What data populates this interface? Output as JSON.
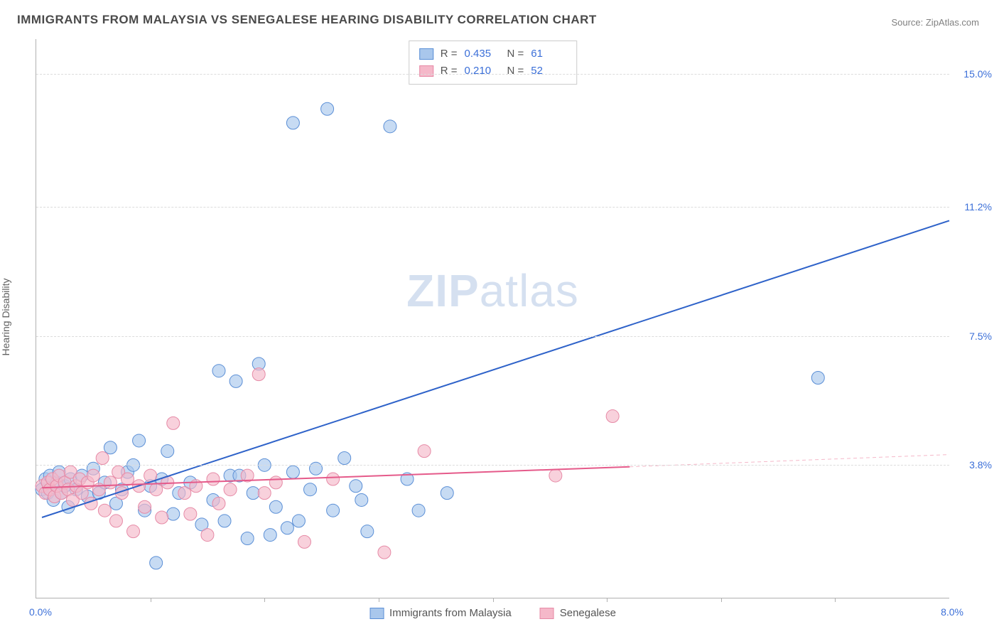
{
  "title": "IMMIGRANTS FROM MALAYSIA VS SENEGALESE HEARING DISABILITY CORRELATION CHART",
  "source_prefix": "Source: ",
  "source_name": "ZipAtlas.com",
  "y_axis_label": "Hearing Disability",
  "watermark_bold": "ZIP",
  "watermark_light": "atlas",
  "chart": {
    "type": "scatter",
    "background_color": "#ffffff",
    "grid_color": "#dcdcdc",
    "axis_color": "#b0b0b0",
    "xlim": [
      0,
      8
    ],
    "ylim": [
      0,
      16
    ],
    "x_origin_label": "0.0%",
    "x_max_label": "8.0%",
    "x_tick_positions": [
      1,
      2,
      3,
      4,
      5,
      6,
      7
    ],
    "y_ticks": [
      {
        "value": 3.8,
        "label": "3.8%"
      },
      {
        "value": 7.5,
        "label": "7.5%"
      },
      {
        "value": 11.2,
        "label": "11.2%"
      },
      {
        "value": 15.0,
        "label": "15.0%"
      }
    ],
    "tick_label_color": "#3b6fd8",
    "series": [
      {
        "id": "malaysia",
        "label": "Immigrants from Malaysia",
        "color_fill": "#a9c7ec",
        "color_stroke": "#5b8fd6",
        "marker_radius": 9,
        "marker_opacity": 0.65,
        "R": "0.435",
        "N": "61",
        "trend": {
          "x1": 0.05,
          "y1": 2.3,
          "x2": 8.0,
          "y2": 10.8,
          "color": "#2e62c9",
          "width": 2
        },
        "points": [
          [
            0.05,
            3.1
          ],
          [
            0.08,
            3.4
          ],
          [
            0.1,
            3.0
          ],
          [
            0.12,
            3.5
          ],
          [
            0.15,
            2.8
          ],
          [
            0.18,
            3.3
          ],
          [
            0.2,
            3.6
          ],
          [
            0.22,
            3.0
          ],
          [
            0.25,
            3.2
          ],
          [
            0.28,
            2.6
          ],
          [
            0.3,
            3.4
          ],
          [
            0.35,
            3.1
          ],
          [
            0.4,
            3.5
          ],
          [
            0.45,
            2.9
          ],
          [
            0.5,
            3.7
          ],
          [
            0.55,
            3.0
          ],
          [
            0.6,
            3.3
          ],
          [
            0.65,
            4.3
          ],
          [
            0.7,
            2.7
          ],
          [
            0.75,
            3.1
          ],
          [
            0.8,
            3.6
          ],
          [
            0.85,
            3.8
          ],
          [
            0.9,
            4.5
          ],
          [
            0.95,
            2.5
          ],
          [
            1.0,
            3.2
          ],
          [
            1.05,
            1.0
          ],
          [
            1.1,
            3.4
          ],
          [
            1.15,
            4.2
          ],
          [
            1.2,
            2.4
          ],
          [
            1.25,
            3.0
          ],
          [
            1.35,
            3.3
          ],
          [
            1.45,
            2.1
          ],
          [
            1.55,
            2.8
          ],
          [
            1.6,
            6.5
          ],
          [
            1.65,
            2.2
          ],
          [
            1.7,
            3.5
          ],
          [
            1.75,
            6.2
          ],
          [
            1.78,
            3.5
          ],
          [
            1.85,
            1.7
          ],
          [
            1.9,
            3.0
          ],
          [
            1.95,
            6.7
          ],
          [
            2.0,
            3.8
          ],
          [
            2.05,
            1.8
          ],
          [
            2.1,
            2.6
          ],
          [
            2.2,
            2.0
          ],
          [
            2.25,
            3.6
          ],
          [
            2.25,
            13.6
          ],
          [
            2.3,
            2.2
          ],
          [
            2.4,
            3.1
          ],
          [
            2.45,
            3.7
          ],
          [
            2.55,
            14.0
          ],
          [
            2.6,
            2.5
          ],
          [
            2.7,
            4.0
          ],
          [
            2.8,
            3.2
          ],
          [
            2.85,
            2.8
          ],
          [
            2.9,
            1.9
          ],
          [
            3.1,
            13.5
          ],
          [
            3.25,
            3.4
          ],
          [
            3.35,
            2.5
          ],
          [
            3.6,
            3.0
          ],
          [
            6.85,
            6.3
          ]
        ]
      },
      {
        "id": "senegalese",
        "label": "Senegalese",
        "color_fill": "#f5b8c9",
        "color_stroke": "#e68aa6",
        "marker_radius": 9,
        "marker_opacity": 0.65,
        "R": "0.210",
        "N": "52",
        "trend": {
          "x1": 0.05,
          "y1": 3.15,
          "x2": 5.2,
          "y2": 3.75,
          "color": "#e55a8a",
          "width": 2
        },
        "trend_ext": {
          "x1": 5.2,
          "y1": 3.75,
          "x2": 8.0,
          "y2": 4.1,
          "color": "#f5b8c9",
          "width": 1,
          "dash": "5,4"
        },
        "points": [
          [
            0.05,
            3.2
          ],
          [
            0.08,
            3.0
          ],
          [
            0.1,
            3.3
          ],
          [
            0.12,
            3.1
          ],
          [
            0.14,
            3.4
          ],
          [
            0.16,
            2.9
          ],
          [
            0.18,
            3.2
          ],
          [
            0.2,
            3.5
          ],
          [
            0.22,
            3.0
          ],
          [
            0.25,
            3.3
          ],
          [
            0.28,
            3.1
          ],
          [
            0.3,
            3.6
          ],
          [
            0.32,
            2.8
          ],
          [
            0.35,
            3.2
          ],
          [
            0.38,
            3.4
          ],
          [
            0.4,
            3.0
          ],
          [
            0.45,
            3.3
          ],
          [
            0.48,
            2.7
          ],
          [
            0.5,
            3.5
          ],
          [
            0.55,
            3.1
          ],
          [
            0.58,
            4.0
          ],
          [
            0.6,
            2.5
          ],
          [
            0.65,
            3.3
          ],
          [
            0.7,
            2.2
          ],
          [
            0.72,
            3.6
          ],
          [
            0.75,
            3.0
          ],
          [
            0.8,
            3.4
          ],
          [
            0.85,
            1.9
          ],
          [
            0.9,
            3.2
          ],
          [
            0.95,
            2.6
          ],
          [
            1.0,
            3.5
          ],
          [
            1.05,
            3.1
          ],
          [
            1.1,
            2.3
          ],
          [
            1.15,
            3.3
          ],
          [
            1.2,
            5.0
          ],
          [
            1.3,
            3.0
          ],
          [
            1.35,
            2.4
          ],
          [
            1.4,
            3.2
          ],
          [
            1.5,
            1.8
          ],
          [
            1.55,
            3.4
          ],
          [
            1.6,
            2.7
          ],
          [
            1.7,
            3.1
          ],
          [
            1.85,
            3.5
          ],
          [
            1.95,
            6.4
          ],
          [
            2.0,
            3.0
          ],
          [
            2.1,
            3.3
          ],
          [
            2.35,
            1.6
          ],
          [
            2.6,
            3.4
          ],
          [
            3.05,
            1.3
          ],
          [
            3.4,
            4.2
          ],
          [
            4.55,
            3.5
          ],
          [
            5.05,
            5.2
          ]
        ]
      }
    ],
    "legend": {
      "R_label": "R  =",
      "N_label": "N  ="
    }
  }
}
